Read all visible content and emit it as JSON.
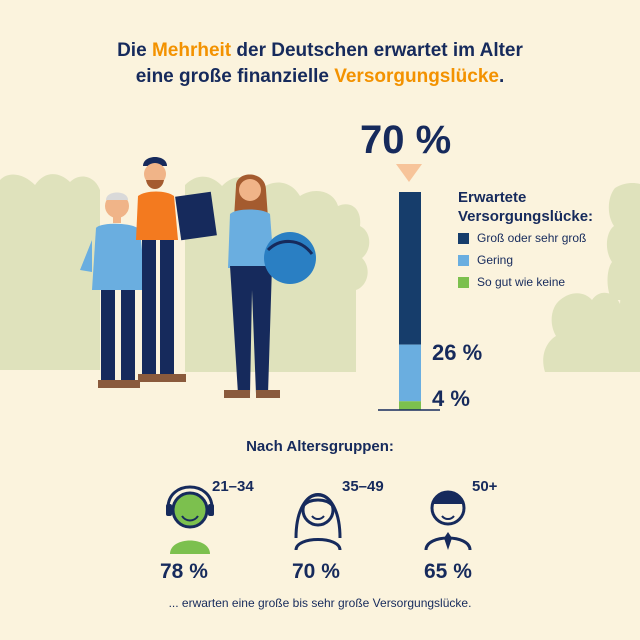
{
  "headline": {
    "part1": "Die ",
    "highlight1": "Mehrheit",
    "part2": " der Deutschen erwartet im Alter",
    "part3": "eine große finanzielle ",
    "highlight2": "Versorgungslücke",
    "part4": "."
  },
  "chart_data": {
    "type": "bar",
    "stacked": true,
    "title": "",
    "categories": [
      "Erwartete Versorgungslücke"
    ],
    "series": [
      {
        "name": "Groß oder sehr groß",
        "values": [
          70
        ]
      },
      {
        "name": "Gering",
        "values": [
          26
        ]
      },
      {
        "name": "So gut wie keine",
        "values": [
          4
        ]
      }
    ],
    "data_labels": [
      "70 %",
      "26 %",
      "4 %"
    ],
    "ylim": [
      0,
      100
    ],
    "grid": false,
    "legend_position": "right"
  },
  "legend": {
    "title_line1": "Erwartete",
    "title_line2": "Versorgungslücke:",
    "items": [
      {
        "label": "Groß oder sehr groß",
        "color": "#163d6b"
      },
      {
        "label": "Gering",
        "color": "#6aaee0"
      },
      {
        "label": "So gut wie keine",
        "color": "#7cc04e"
      }
    ]
  },
  "age_groups": {
    "title": "Nach Altersgruppen:",
    "groups": [
      {
        "range": "21–34",
        "value": "78 %",
        "icon": "young-person-icon"
      },
      {
        "range": "35–49",
        "value": "70 %",
        "icon": "woman-icon"
      },
      {
        "range": "50+",
        "value": "65 %",
        "icon": "man-with-tie-icon"
      }
    ],
    "footnote": "... erwarten eine große bis sehr große Versorgungslücke."
  },
  "colors": {
    "navy": "#162a5c",
    "dark_bar": "#163d6b",
    "light_bar": "#6aaee0",
    "green": "#7cc04e",
    "orange": "#f39200",
    "background": "#fbf3dd",
    "bush": "#dfe2bc"
  }
}
